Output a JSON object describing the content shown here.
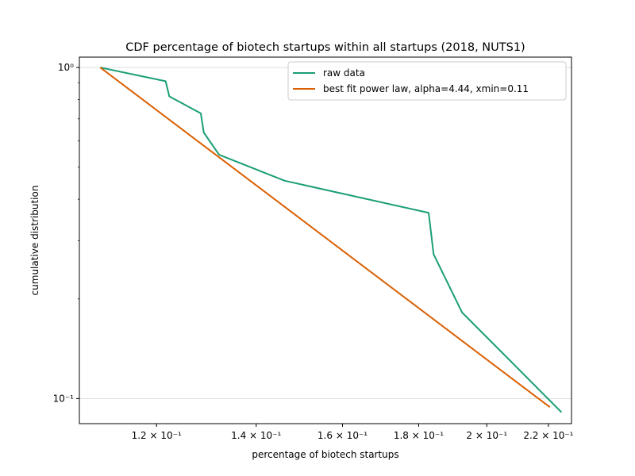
{
  "chart_data": {
    "type": "line",
    "title": "CDF percentage of biotech startups within all startups (2018, NUTS1)",
    "xlabel": "percentage of biotech startups",
    "ylabel": "cumulative distribution",
    "xscale": "log",
    "yscale": "log",
    "xlim": [
      0.1065,
      0.228
    ],
    "ylim": [
      0.084,
      1.075
    ],
    "grid": "y-major-only",
    "legend_position": "top-right",
    "x_ticks": [
      {
        "value": 0.12,
        "label": "1.2 × 10⁻¹"
      },
      {
        "value": 0.14,
        "label": "1.4 × 10⁻¹"
      },
      {
        "value": 0.16,
        "label": "1.6 × 10⁻¹"
      },
      {
        "value": 0.18,
        "label": "1.8 × 10⁻¹"
      },
      {
        "value": 0.2,
        "label": "2 × 10⁻¹"
      },
      {
        "value": 0.22,
        "label": "2.2 × 10⁻¹"
      }
    ],
    "y_ticks": [
      {
        "value": 1.0,
        "label": "10⁰"
      },
      {
        "value": 0.1,
        "label": "10⁻¹"
      }
    ],
    "series": [
      {
        "name": "raw data",
        "color": "#1b9e77",
        "x": [
          0.11,
          0.1217,
          0.1224,
          0.1285,
          0.1291,
          0.1322,
          0.1463,
          0.1828,
          0.1842,
          0.1925,
          0.2245
        ],
        "y": [
          1.0,
          0.909,
          0.818,
          0.727,
          0.636,
          0.545,
          0.455,
          0.364,
          0.273,
          0.182,
          0.0909
        ]
      },
      {
        "name": "best fit power law, alpha=4.44, xmin=0.11",
        "color": "#d95f02",
        "x": [
          0.11,
          0.2205
        ],
        "y": [
          1.0,
          0.0942
        ]
      }
    ]
  }
}
